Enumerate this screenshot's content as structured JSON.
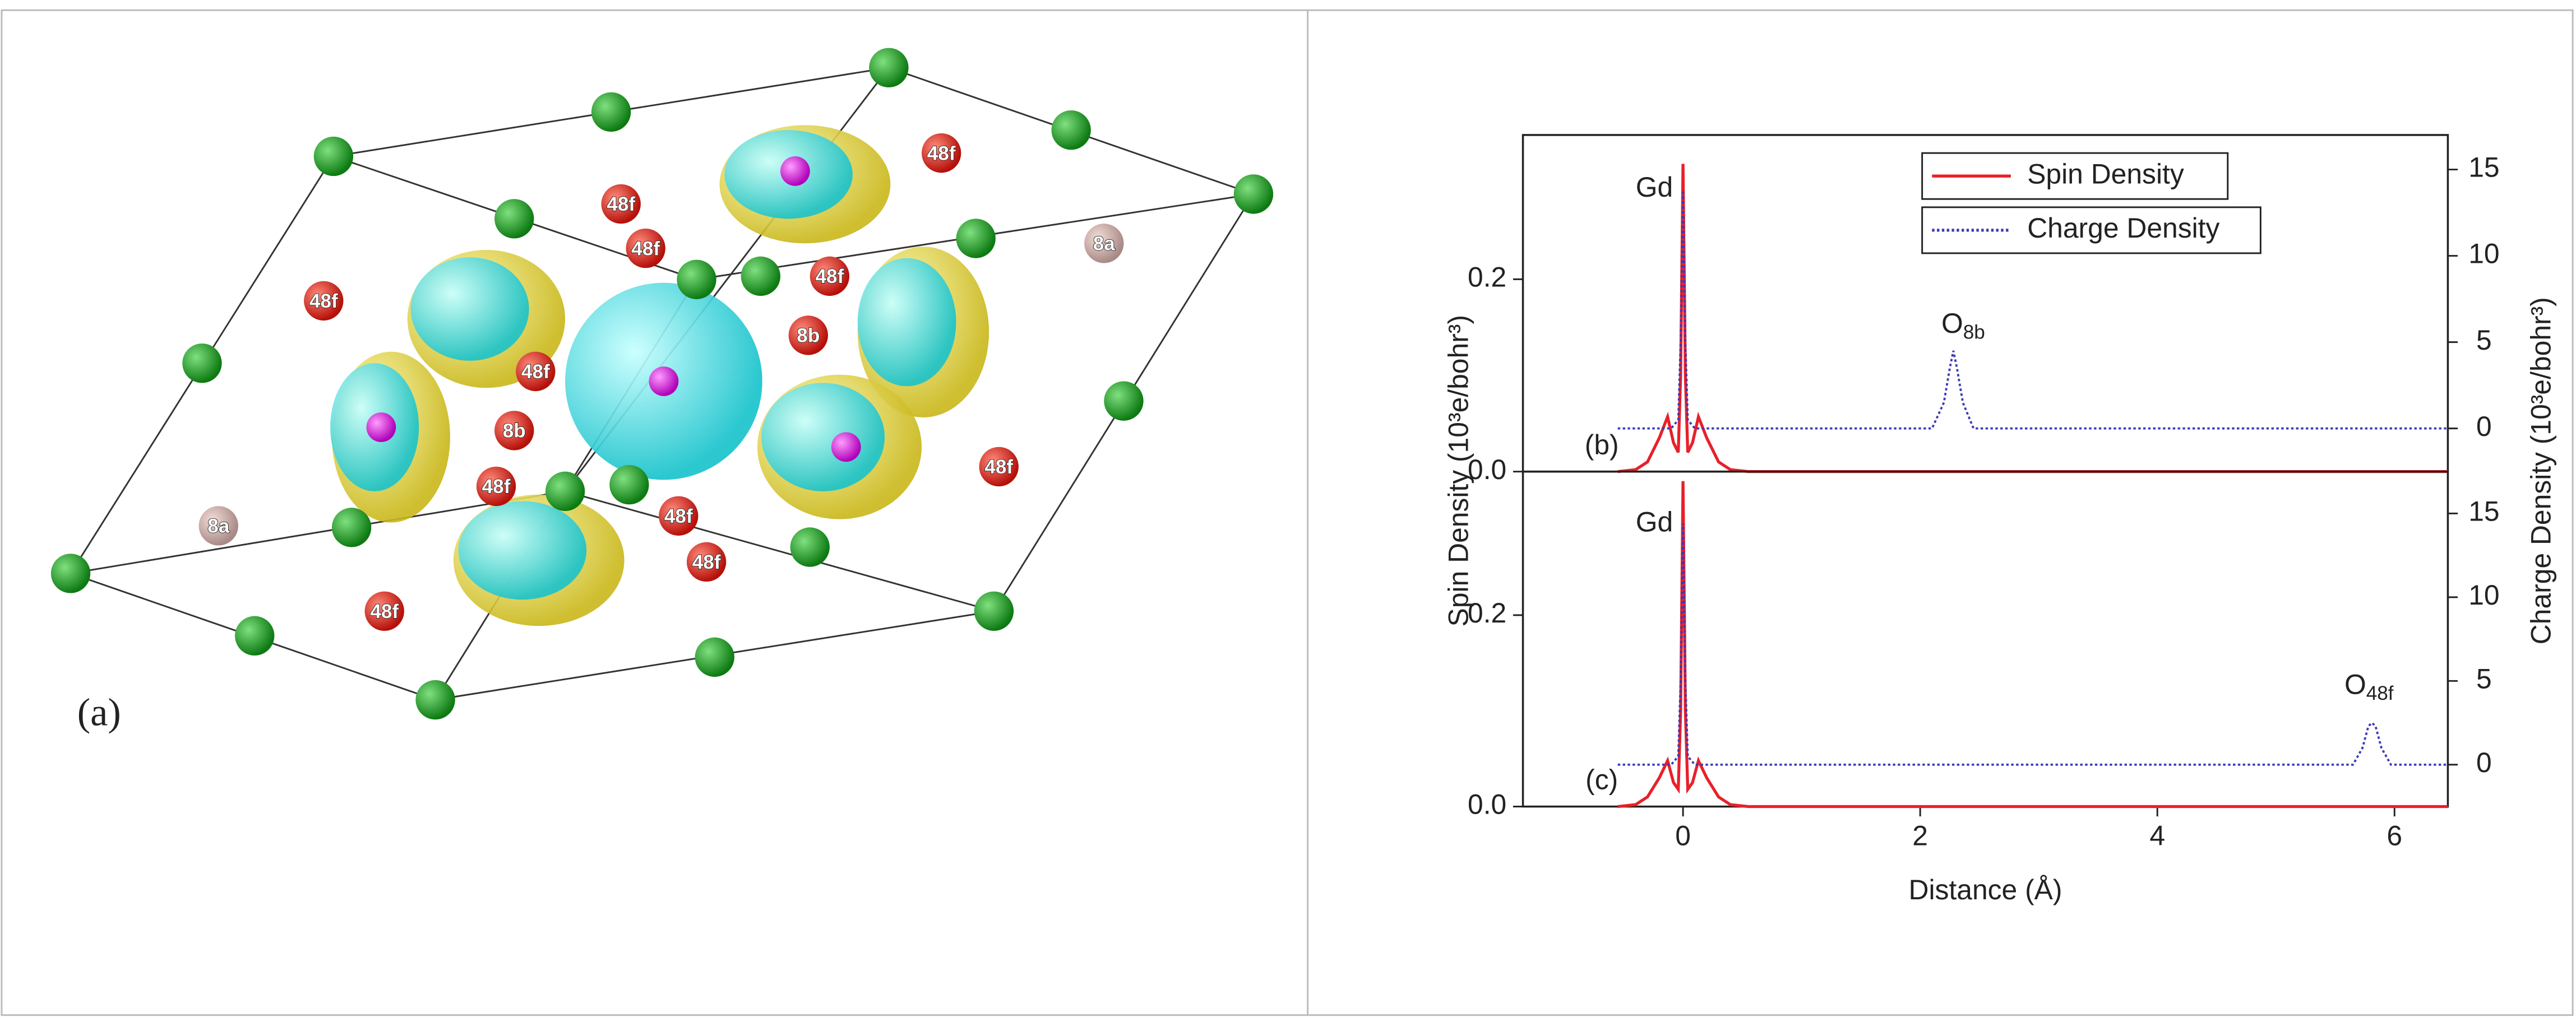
{
  "structure": {
    "panel_label": "(a)",
    "site_labels": [
      "48f",
      "48f",
      "48f",
      "48f",
      "8a",
      "48f",
      "8b",
      "48f",
      "8b",
      "48f",
      "48f",
      "8a",
      "48f",
      "48f",
      "48f"
    ]
  },
  "chart_data": [
    {
      "type": "line",
      "panel_label": "(b)",
      "annotation": "Gd",
      "peak_label": {
        "text": "O",
        "subscript": "8b"
      },
      "ylabel": "Spin Density (10³e/bohr³)",
      "y2label": "Charge Density (10³e/bohr³)",
      "xlim": [
        -1.35,
        6.45
      ],
      "ylim": [
        0,
        0.35
      ],
      "yticks": [
        {
          "value": 0,
          "label": "0.0"
        },
        0.2
      ],
      "y2lim": [
        -2.5,
        17
      ],
      "y2ticks": [
        0,
        5,
        10,
        15
      ],
      "legend": "upper center",
      "series": [
        {
          "name": "Spin Density",
          "color": "#e8202a",
          "style": "solid",
          "x": [
            -0.55,
            -0.4,
            -0.3,
            -0.2,
            -0.13,
            -0.08,
            -0.04,
            -0.02,
            0,
            0.02,
            0.04,
            0.08,
            0.13,
            0.2,
            0.3,
            0.4,
            0.55,
            1,
            2,
            3,
            4,
            5,
            6,
            6.45
          ],
          "values": [
            0,
            0.002,
            0.01,
            0.035,
            0.057,
            0.03,
            0.02,
            0.1,
            0.32,
            0.1,
            0.02,
            0.03,
            0.057,
            0.035,
            0.01,
            0.002,
            0,
            0,
            0,
            0,
            0,
            0,
            0,
            0
          ]
        },
        {
          "name": "Charge Density",
          "color": "#3a3ab8",
          "style": "dotted",
          "axis": "y2",
          "x": [
            -0.55,
            -0.1,
            -0.04,
            -0.02,
            0,
            0.02,
            0.04,
            0.1,
            2.1,
            2.2,
            2.25,
            2.28,
            2.31,
            2.36,
            2.45,
            6.45
          ],
          "values": [
            0,
            0,
            0.5,
            5,
            13.8,
            5,
            0.5,
            0,
            0,
            1.5,
            3.5,
            4.5,
            3.5,
            1.5,
            0,
            0
          ]
        }
      ]
    },
    {
      "type": "line",
      "panel_label": "(c)",
      "annotation": "Gd",
      "peak_label": {
        "text": "O",
        "subscript": "48f"
      },
      "xlabel": "Distance (Å)",
      "xlim": [
        -1.35,
        6.45
      ],
      "xticks": [
        0,
        2,
        4,
        6
      ],
      "ylim": [
        0,
        0.35
      ],
      "yticks": [
        {
          "value": 0,
          "label": "0.0"
        },
        0.2
      ],
      "y2lim": [
        -2.5,
        17.5
      ],
      "y2ticks": [
        0,
        5,
        10,
        15
      ],
      "series": [
        {
          "name": "Spin Density",
          "color": "#e8202a",
          "style": "solid",
          "x": [
            -0.55,
            -0.4,
            -0.3,
            -0.2,
            -0.13,
            -0.08,
            -0.04,
            -0.02,
            0,
            0.02,
            0.04,
            0.08,
            0.13,
            0.2,
            0.3,
            0.4,
            0.55,
            1,
            2,
            3,
            4,
            5,
            6,
            6.45
          ],
          "values": [
            0,
            0.002,
            0.01,
            0.03,
            0.048,
            0.025,
            0.018,
            0.1,
            0.34,
            0.1,
            0.018,
            0.025,
            0.048,
            0.03,
            0.01,
            0.002,
            0,
            0,
            0,
            0,
            0,
            0,
            0,
            0
          ]
        },
        {
          "name": "Charge Density",
          "color": "#3a3ab8",
          "style": "dotted",
          "axis": "y2",
          "x": [
            -0.55,
            -0.1,
            -0.04,
            -0.02,
            0,
            0.02,
            0.04,
            0.1,
            5.65,
            5.73,
            5.78,
            5.81,
            5.84,
            5.89,
            5.97,
            6.45
          ],
          "values": [
            0,
            0,
            0.5,
            5,
            14.4,
            5,
            0.5,
            0,
            0,
            1,
            2.3,
            2.5,
            2.3,
            1,
            0,
            0
          ]
        }
      ]
    }
  ]
}
